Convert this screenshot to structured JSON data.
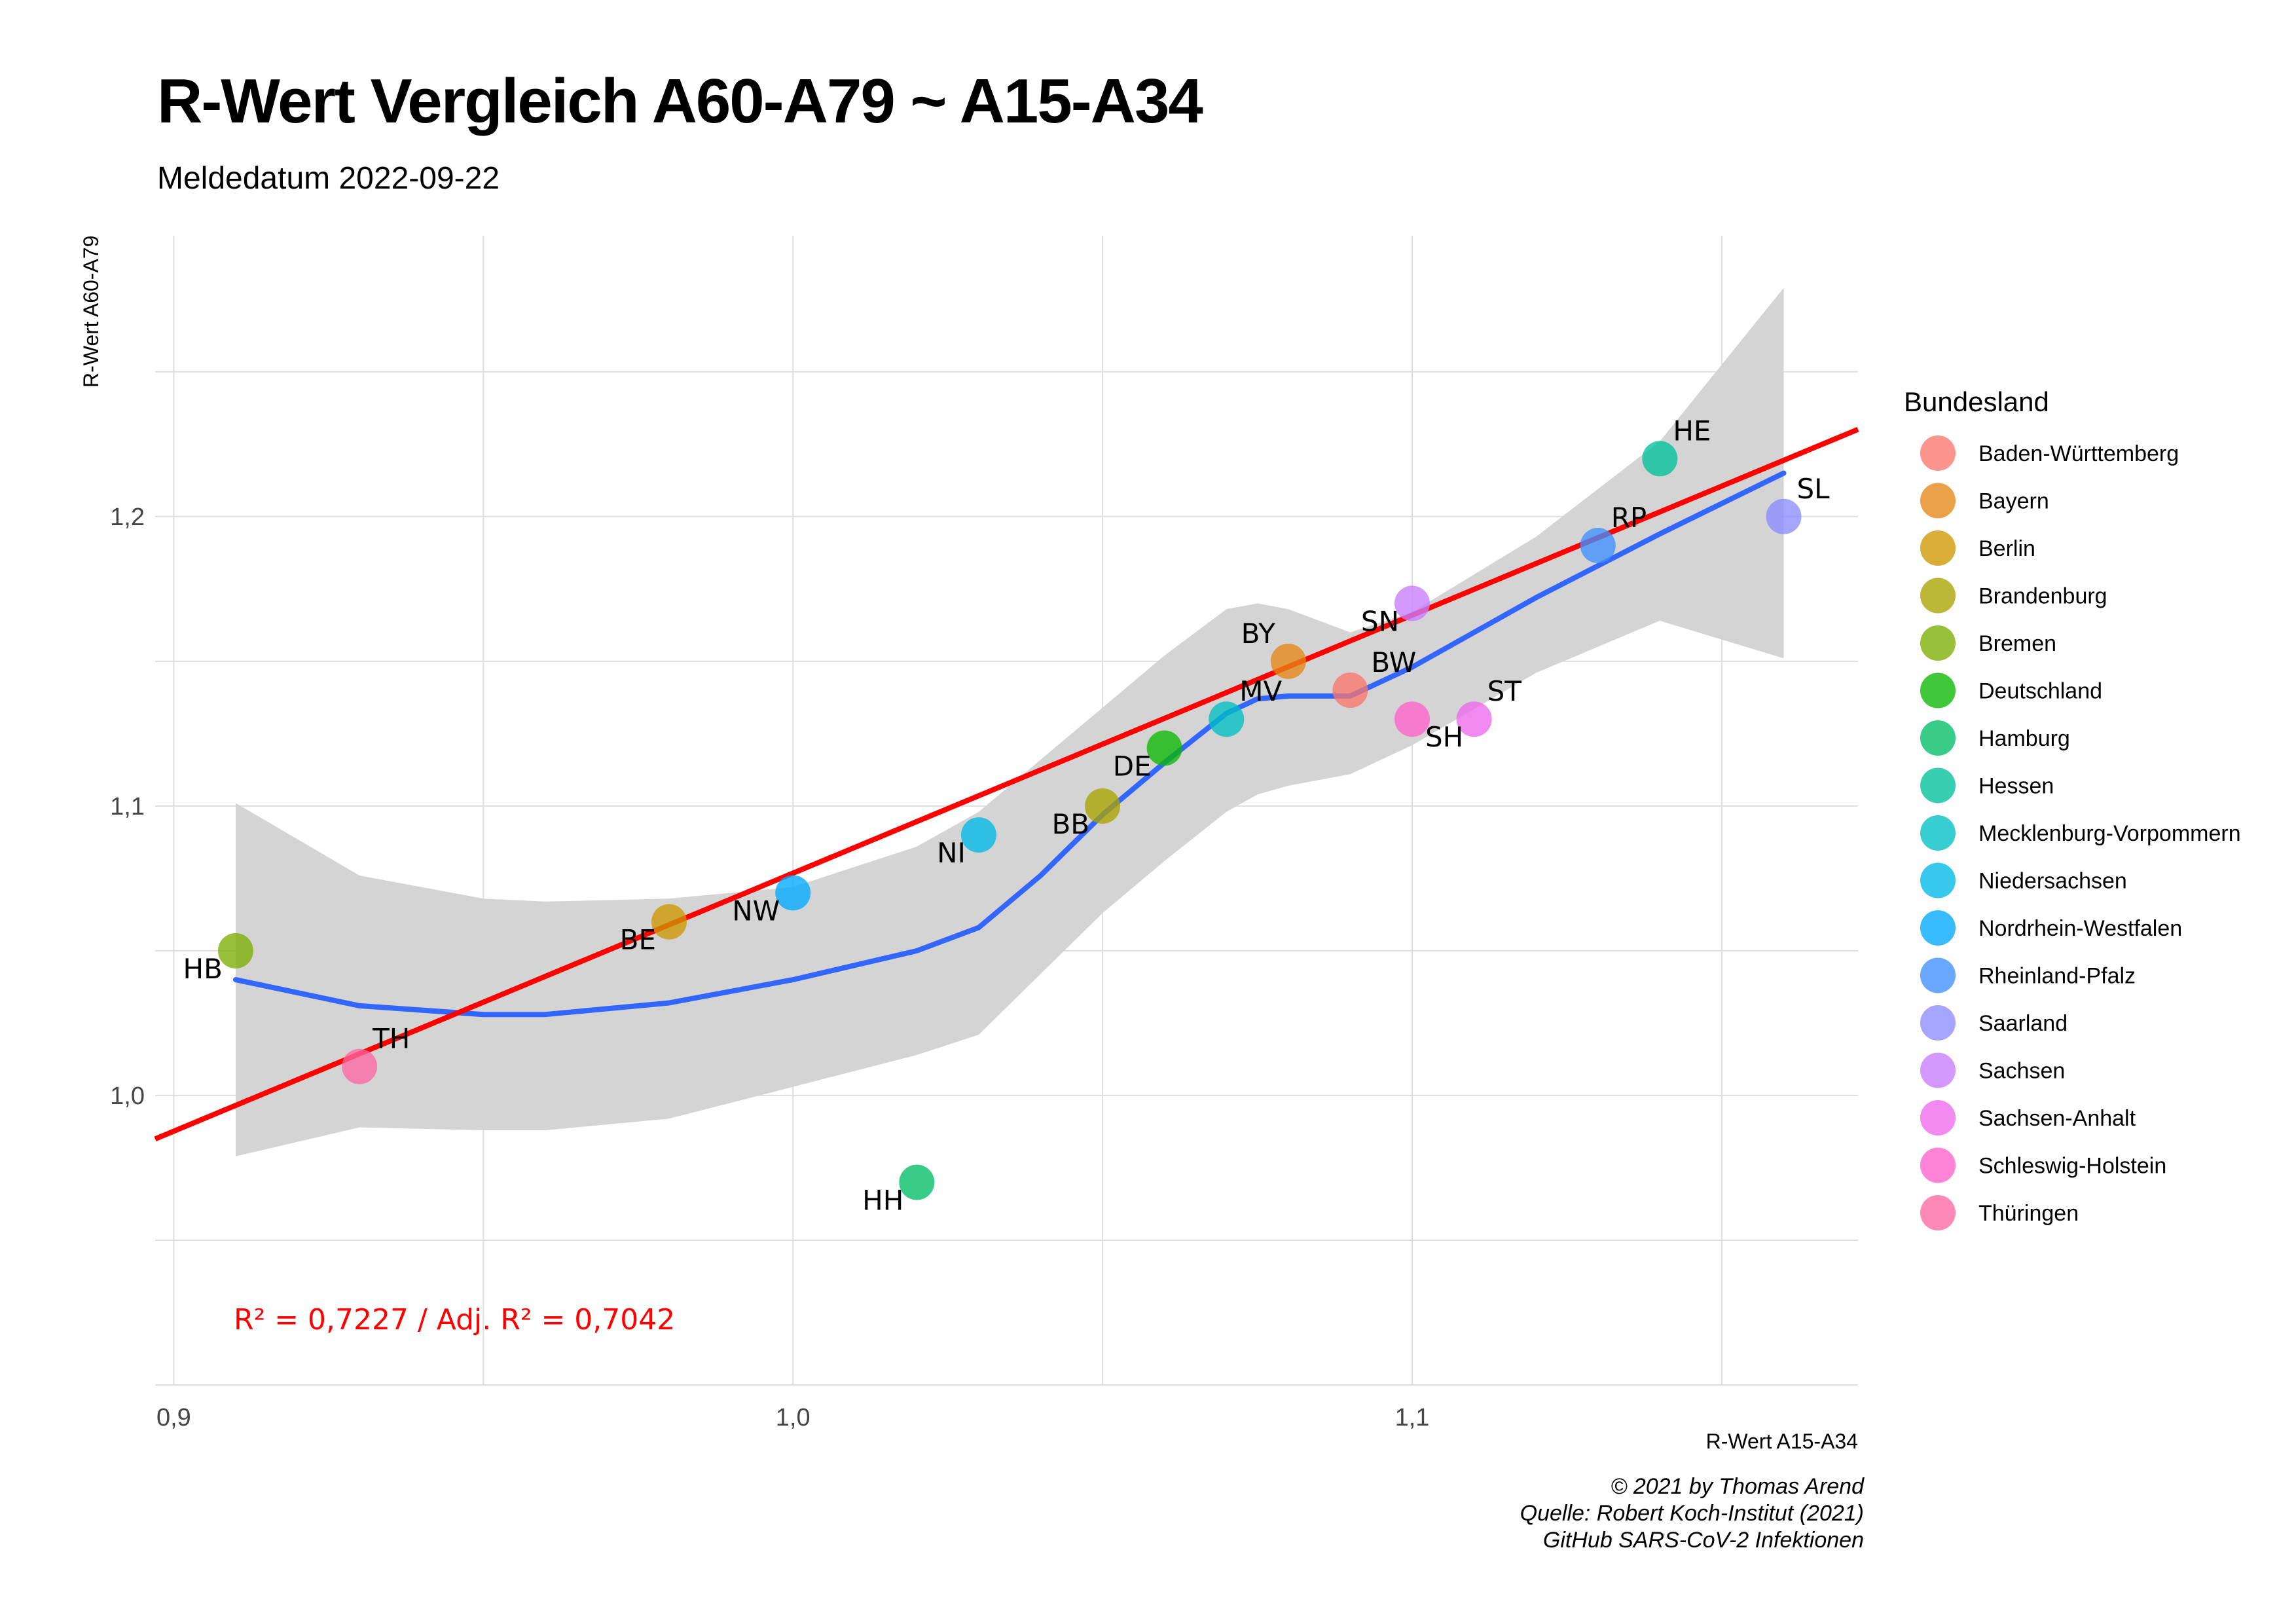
{
  "title": "R-Wert Vergleich A60-A79 ~ A15-A34",
  "subtitle": "Meldedatum 2022-09-22",
  "caption": [
    "© 2021 by Thomas Arend",
    "Quelle: Robert Koch-Institut (2021)",
    "GitHub SARS-CoV-2 Infektionen"
  ],
  "chart_data": {
    "type": "scatter",
    "xlabel": "R-Wert A15-A34",
    "ylabel": "R-Wert A60-A79",
    "xlim": [
      0.897,
      1.172
    ],
    "ylim": [
      0.9,
      1.297
    ],
    "x_ticks": [
      0.9,
      1.0,
      1.1
    ],
    "x_tick_labels": [
      "0,9",
      "1,0",
      "1,1"
    ],
    "y_ticks": [
      1.0,
      1.1,
      1.2
    ],
    "y_tick_labels": [
      "1,0",
      "1,1",
      "1,2"
    ],
    "grid": true,
    "legend_title": "Bundesland",
    "legend_position": "right",
    "series": [
      {
        "name": "Baden-Württemberg",
        "label": "BW",
        "x": 1.09,
        "y": 1.14,
        "color": "#f8766d"
      },
      {
        "name": "Bayern",
        "label": "BY",
        "x": 1.08,
        "y": 1.15,
        "color": "#e68613"
      },
      {
        "name": "Berlin",
        "label": "BE",
        "x": 0.98,
        "y": 1.06,
        "color": "#cd9600"
      },
      {
        "name": "Brandenburg",
        "label": "BB",
        "x": 1.05,
        "y": 1.1,
        "color": "#aba300"
      },
      {
        "name": "Bremen",
        "label": "HB",
        "x": 0.91,
        "y": 1.05,
        "color": "#7cae00"
      },
      {
        "name": "Deutschland",
        "label": "DE",
        "x": 1.06,
        "y": 1.12,
        "color": "#0cb702"
      },
      {
        "name": "Hamburg",
        "label": "HH",
        "x": 1.02,
        "y": 0.97,
        "color": "#00be67"
      },
      {
        "name": "Hessen",
        "label": "HE",
        "x": 1.14,
        "y": 1.22,
        "color": "#00c19a"
      },
      {
        "name": "Mecklenburg-Vorpommern",
        "label": "MV",
        "x": 1.07,
        "y": 1.13,
        "color": "#00bfc4"
      },
      {
        "name": "Niedersachsen",
        "label": "NI",
        "x": 1.03,
        "y": 1.09,
        "color": "#00b8e7"
      },
      {
        "name": "Nordrhein-Westfalen",
        "label": "NW",
        "x": 1.0,
        "y": 1.07,
        "color": "#00a9ff"
      },
      {
        "name": "Rheinland-Pfalz",
        "label": "RP",
        "x": 1.13,
        "y": 1.19,
        "color": "#3d8fff"
      },
      {
        "name": "Saarland",
        "label": "SL",
        "x": 1.16,
        "y": 1.2,
        "color": "#8c8cff"
      },
      {
        "name": "Sachsen",
        "label": "SN",
        "x": 1.1,
        "y": 1.17,
        "color": "#c77cff"
      },
      {
        "name": "Sachsen-Anhalt",
        "label": "ST",
        "x": 1.11,
        "y": 1.13,
        "color": "#ed68ed"
      },
      {
        "name": "Schleswig-Holstein",
        "label": "SH",
        "x": 1.1,
        "y": 1.13,
        "color": "#ff61cc"
      },
      {
        "name": "Thüringen",
        "label": "TH",
        "x": 0.93,
        "y": 1.01,
        "color": "#ff68a1"
      }
    ],
    "regression_line": {
      "color": "#ff0000",
      "intercept": 0.1854,
      "slope": 0.8914
    },
    "smooth_line": {
      "color": "#3366ff",
      "x": [
        0.91,
        0.93,
        0.95,
        0.96,
        0.98,
        1.0,
        1.02,
        1.03,
        1.04,
        1.05,
        1.06,
        1.07,
        1.075,
        1.08,
        1.09,
        1.1,
        1.12,
        1.14,
        1.16
      ],
      "y": [
        1.04,
        1.031,
        1.028,
        1.028,
        1.032,
        1.04,
        1.05,
        1.058,
        1.076,
        1.097,
        1.115,
        1.132,
        1.137,
        1.138,
        1.138,
        1.148,
        1.172,
        1.194,
        1.215
      ]
    },
    "confidence_band": {
      "x": [
        0.91,
        0.93,
        0.95,
        0.96,
        0.98,
        1.0,
        1.02,
        1.03,
        1.04,
        1.05,
        1.06,
        1.07,
        1.075,
        1.08,
        1.09,
        1.1,
        1.12,
        1.14,
        1.16
      ],
      "upper": [
        1.101,
        1.076,
        1.068,
        1.067,
        1.068,
        1.072,
        1.086,
        1.098,
        1.116,
        1.134,
        1.152,
        1.168,
        1.17,
        1.168,
        1.16,
        1.167,
        1.193,
        1.226,
        1.279
      ],
      "lower": [
        0.979,
        0.989,
        0.988,
        0.988,
        0.992,
        1.003,
        1.014,
        1.021,
        1.042,
        1.063,
        1.081,
        1.098,
        1.104,
        1.107,
        1.111,
        1.121,
        1.146,
        1.164,
        1.151
      ]
    },
    "annotation": {
      "text": "R² = 0,7227 / Adj. R² =  0,7042",
      "color": "#ff0000"
    }
  }
}
